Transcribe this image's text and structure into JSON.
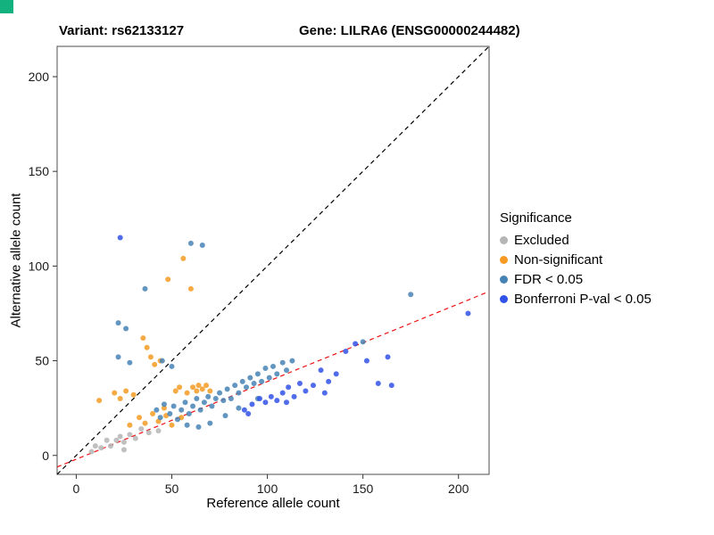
{
  "titles": {
    "left": "Variant: rs62133127",
    "right": "Gene: LILRA6 (ENSG00000244482)"
  },
  "corner_swatch_color": "#12b17e",
  "chart_data": {
    "type": "scatter",
    "title": "Variant: rs62133127 — Gene: LILRA6 (ENSG00000244482)",
    "xlabel": "Reference allele count",
    "ylabel": "Alternative allele count",
    "xlim": [
      -10,
      216
    ],
    "ylim": [
      -10,
      216
    ],
    "xticks": [
      0,
      50,
      100,
      150,
      200
    ],
    "yticks": [
      0,
      50,
      100,
      150,
      200
    ],
    "grid": false,
    "legend": {
      "title": "Significance",
      "position": "right"
    },
    "series": [
      {
        "name": "Excluded",
        "color": "#b5b5b5",
        "points": [
          [
            8,
            2
          ],
          [
            10,
            5
          ],
          [
            13,
            4
          ],
          [
            16,
            8
          ],
          [
            18,
            5
          ],
          [
            21,
            8
          ],
          [
            23,
            10
          ],
          [
            25,
            7
          ],
          [
            25,
            3
          ],
          [
            28,
            11
          ],
          [
            31,
            9
          ],
          [
            34,
            14
          ],
          [
            38,
            12
          ],
          [
            43,
            13
          ]
        ]
      },
      {
        "name": "Non-significant",
        "color": "#f59b23",
        "points": [
          [
            12,
            29
          ],
          [
            20,
            33
          ],
          [
            23,
            30
          ],
          [
            26,
            34
          ],
          [
            30,
            32
          ],
          [
            28,
            16
          ],
          [
            33,
            20
          ],
          [
            35,
            62
          ],
          [
            37,
            57
          ],
          [
            39,
            52
          ],
          [
            41,
            48
          ],
          [
            44,
            50
          ],
          [
            40,
            22
          ],
          [
            43,
            18
          ],
          [
            46,
            25
          ],
          [
            47,
            21
          ],
          [
            48,
            93
          ],
          [
            50,
            16
          ],
          [
            52,
            34
          ],
          [
            54,
            36
          ],
          [
            56,
            104
          ],
          [
            58,
            33
          ],
          [
            60,
            88
          ],
          [
            61,
            36
          ],
          [
            63,
            34
          ],
          [
            64,
            37
          ],
          [
            66,
            35
          ],
          [
            68,
            37
          ],
          [
            70,
            34
          ],
          [
            55,
            20
          ],
          [
            36,
            17
          ]
        ]
      },
      {
        "name": "FDR < 0.05",
        "color": "#4682b4",
        "points": [
          [
            22,
            70
          ],
          [
            26,
            67
          ],
          [
            22,
            52
          ],
          [
            28,
            49
          ],
          [
            36,
            88
          ],
          [
            60,
            112
          ],
          [
            66,
            111
          ],
          [
            45,
            50
          ],
          [
            50,
            47
          ],
          [
            42,
            24
          ],
          [
            44,
            20
          ],
          [
            46,
            27
          ],
          [
            49,
            22
          ],
          [
            51,
            26
          ],
          [
            53,
            19
          ],
          [
            55,
            24
          ],
          [
            57,
            28
          ],
          [
            58,
            16
          ],
          [
            59,
            22
          ],
          [
            61,
            26
          ],
          [
            63,
            30
          ],
          [
            64,
            15
          ],
          [
            65,
            24
          ],
          [
            67,
            28
          ],
          [
            69,
            31
          ],
          [
            70,
            17
          ],
          [
            71,
            26
          ],
          [
            73,
            30
          ],
          [
            75,
            33
          ],
          [
            77,
            29
          ],
          [
            78,
            21
          ],
          [
            79,
            35
          ],
          [
            81,
            30
          ],
          [
            83,
            37
          ],
          [
            85,
            25
          ],
          [
            85,
            33
          ],
          [
            87,
            39
          ],
          [
            89,
            36
          ],
          [
            91,
            41
          ],
          [
            93,
            38
          ],
          [
            95,
            30
          ],
          [
            95,
            43
          ],
          [
            97,
            39
          ],
          [
            99,
            46
          ],
          [
            101,
            41
          ],
          [
            103,
            47
          ],
          [
            105,
            43
          ],
          [
            108,
            49
          ],
          [
            110,
            45
          ],
          [
            113,
            50
          ],
          [
            150,
            60
          ],
          [
            175,
            85
          ]
        ]
      },
      {
        "name": "Bonferroni P-val < 0.05",
        "color": "#3152e8",
        "points": [
          [
            23,
            115
          ],
          [
            88,
            24
          ],
          [
            90,
            22
          ],
          [
            92,
            27
          ],
          [
            96,
            30
          ],
          [
            99,
            28
          ],
          [
            102,
            31
          ],
          [
            105,
            29
          ],
          [
            108,
            33
          ],
          [
            110,
            28
          ],
          [
            111,
            36
          ],
          [
            114,
            31
          ],
          [
            117,
            38
          ],
          [
            120,
            34
          ],
          [
            124,
            37
          ],
          [
            128,
            45
          ],
          [
            130,
            33
          ],
          [
            132,
            39
          ],
          [
            136,
            43
          ],
          [
            141,
            55
          ],
          [
            146,
            59
          ],
          [
            152,
            50
          ],
          [
            158,
            38
          ],
          [
            163,
            52
          ],
          [
            165,
            37
          ],
          [
            205,
            75
          ]
        ]
      }
    ],
    "lines": [
      {
        "name": "identity-line",
        "color": "#000000",
        "style": "dashed",
        "slope": 1,
        "intercept": 0
      },
      {
        "name": "regression-line",
        "color": "#ee1111",
        "style": "dashed",
        "slope": 0.41,
        "intercept": -2
      }
    ]
  }
}
